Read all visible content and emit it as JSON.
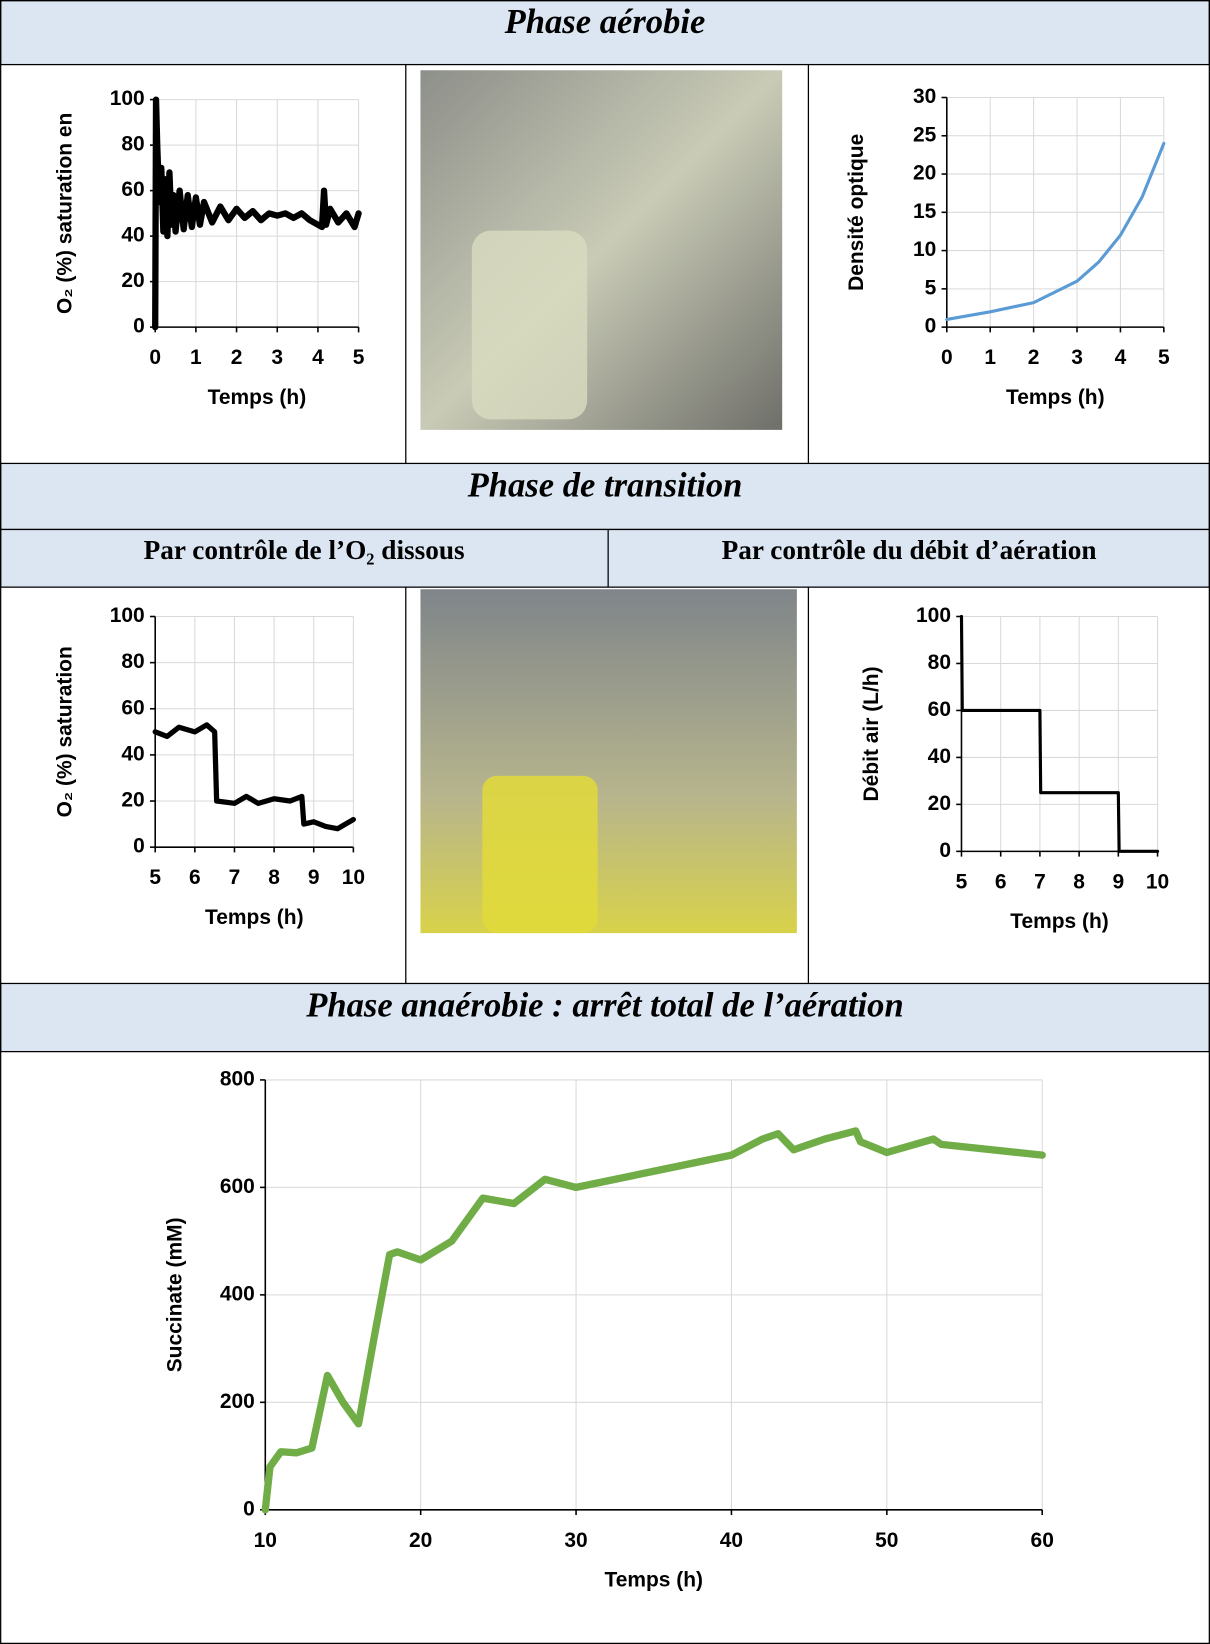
{
  "sections": [
    "Phase aérobie",
    "Phase de transition",
    "Phase anaérobie : arrêt total de l’aération"
  ],
  "subheaders": [
    "Par contrôle de l’O₂ dissous",
    "Par contrôle du débit d’aération"
  ],
  "chart_data": [
    {
      "type": "line",
      "x_label": "Temps (h)",
      "y_label": "O₂ (%) saturation en",
      "color": "#000000",
      "grid": true,
      "xlim": [
        0,
        5
      ],
      "xticks": [
        0,
        1,
        2,
        3,
        4,
        5
      ],
      "ylim": [
        0,
        100
      ],
      "yticks": [
        0,
        20,
        40,
        60,
        80,
        100
      ],
      "x": [
        0,
        0.02,
        0.05,
        0.1,
        0.15,
        0.2,
        0.25,
        0.3,
        0.35,
        0.4,
        0.45,
        0.5,
        0.6,
        0.7,
        0.8,
        0.9,
        1.0,
        1.1,
        1.2,
        1.4,
        1.6,
        1.8,
        2.0,
        2.2,
        2.4,
        2.6,
        2.8,
        3.0,
        3.2,
        3.4,
        3.6,
        3.8,
        4.0,
        4.1,
        4.15,
        4.2,
        4.3,
        4.5,
        4.7,
        4.9,
        5.0
      ],
      "values": [
        0,
        100,
        80,
        55,
        70,
        42,
        65,
        40,
        68,
        45,
        58,
        42,
        60,
        43,
        58,
        44,
        57,
        45,
        55,
        46,
        53,
        47,
        52,
        48,
        51,
        47,
        50,
        49,
        50,
        48,
        50,
        47,
        45,
        44,
        60,
        45,
        52,
        46,
        50,
        44,
        50
      ]
    },
    {
      "type": "line",
      "x_label": "Temps (h)",
      "y_label": "Densité optique",
      "color": "#5b9bd5",
      "grid": true,
      "xlim": [
        0,
        5
      ],
      "xticks": [
        0,
        1,
        2,
        3,
        4,
        5
      ],
      "ylim": [
        0,
        30
      ],
      "yticks": [
        0,
        5,
        10,
        15,
        20,
        25,
        30
      ],
      "x": [
        0,
        1,
        2,
        3,
        3.5,
        4,
        4.5,
        5
      ],
      "values": [
        1,
        2,
        3.2,
        6,
        8.5,
        12,
        17,
        24
      ]
    },
    {
      "type": "line",
      "x_label": "Temps (h)",
      "y_label": "O₂ (%) saturation",
      "color": "#000000",
      "grid": true,
      "xlim": [
        5,
        10
      ],
      "xticks": [
        5,
        6,
        7,
        8,
        9,
        10
      ],
      "ylim": [
        0,
        100
      ],
      "yticks": [
        0,
        20,
        40,
        60,
        80,
        100
      ],
      "x": [
        5,
        5.3,
        5.6,
        6,
        6.3,
        6.5,
        6.55,
        7,
        7.3,
        7.6,
        8,
        8.4,
        8.7,
        8.75,
        9,
        9.3,
        9.6,
        10
      ],
      "values": [
        50,
        48,
        52,
        50,
        53,
        50,
        20,
        19,
        22,
        19,
        21,
        20,
        22,
        10,
        11,
        9,
        8,
        12
      ]
    },
    {
      "type": "line",
      "x_label": "Temps (h)",
      "y_label": "Débit air (L/h)",
      "color": "#000000",
      "grid": true,
      "xlim": [
        5,
        10
      ],
      "xticks": [
        5,
        6,
        7,
        8,
        9,
        10
      ],
      "ylim": [
        0,
        100
      ],
      "yticks": [
        0,
        20,
        40,
        60,
        80,
        100
      ],
      "x": [
        5,
        5.02,
        7,
        7.02,
        9,
        9.02,
        10
      ],
      "values": [
        100,
        60,
        60,
        25,
        25,
        0,
        0
      ]
    },
    {
      "type": "line",
      "x_label": "Temps (h)",
      "y_label": "Succinate (mM)",
      "color": "#70ad47",
      "grid": true,
      "xlim": [
        10,
        60
      ],
      "xticks": [
        10,
        20,
        30,
        40,
        50,
        60
      ],
      "ylim": [
        0,
        800
      ],
      "yticks": [
        0,
        200,
        400,
        600,
        800
      ],
      "x": [
        10,
        10.3,
        11,
        12,
        13,
        14,
        15,
        16,
        17,
        18,
        18.5,
        19,
        20,
        22,
        24,
        26,
        28,
        30,
        35,
        40,
        42,
        43,
        44,
        46,
        48,
        48.3,
        50,
        53,
        53.5,
        60
      ],
      "values": [
        0,
        80,
        108,
        106,
        115,
        250,
        200,
        160,
        320,
        475,
        480,
        475,
        465,
        500,
        580,
        570,
        615,
        600,
        630,
        660,
        690,
        700,
        670,
        690,
        705,
        685,
        665,
        690,
        680,
        660
      ]
    }
  ]
}
